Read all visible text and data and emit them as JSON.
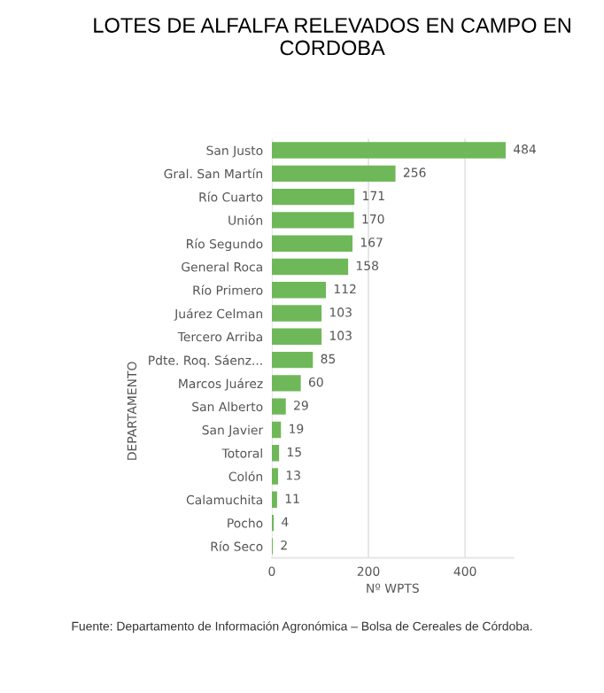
{
  "chart_data": {
    "type": "bar",
    "orientation": "horizontal",
    "title": "LOTES DE ALFALFA RELEVADOS EN CAMPO EN CORDOBA",
    "xlabel": "Nº WPTS",
    "ylabel": "DEPARTAMENTO",
    "categories": [
      "San Justo",
      "Gral. San Martín",
      "Río Cuarto",
      "Unión",
      "Río Segundo",
      "General Roca",
      "Río Primero",
      "Juárez Celman",
      "Tercero Arriba",
      "Pdte. Roq. Sáenz...",
      "Marcos Juárez",
      "San Alberto",
      "San Javier",
      "Totoral",
      "Colón",
      "Calamuchita",
      "Pocho",
      "Río Seco"
    ],
    "values": [
      484,
      256,
      171,
      170,
      167,
      158,
      112,
      103,
      103,
      85,
      60,
      29,
      19,
      15,
      13,
      11,
      4,
      2
    ],
    "color": "#6fb85a",
    "xlim": [
      0,
      500
    ],
    "xticks": [
      0,
      200,
      400
    ],
    "grid": "x",
    "data_labels": true,
    "annotations": [
      "Fuente: Departamento de Información Agronómica – Bolsa de Cereales de Córdoba."
    ]
  }
}
